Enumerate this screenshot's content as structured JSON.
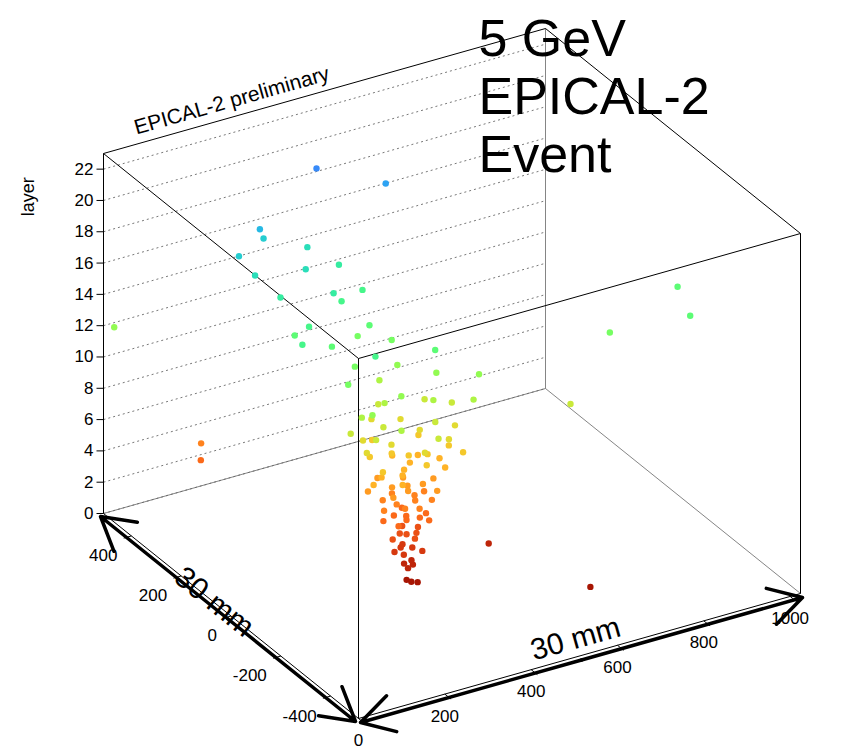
{
  "chart_data": {
    "type": "scatter3d",
    "title": "EPICAL-2 preliminary",
    "annotation": [
      "5 GeV",
      "EPICAL-2",
      "Event"
    ],
    "zlabel": "layer",
    "dimension_labels": [
      "30 mm",
      "30 mm"
    ],
    "grid": true,
    "xlim": [
      0,
      1024
    ],
    "ylim": [
      -512,
      512
    ],
    "zlim": [
      0,
      23
    ],
    "xticks": [
      0,
      200,
      400,
      600,
      800,
      1000
    ],
    "yticks": [
      -400,
      -200,
      0,
      200,
      400
    ],
    "zticks": [
      0,
      2,
      4,
      6,
      8,
      10,
      12,
      14,
      16,
      18,
      20,
      22
    ],
    "x": [
      378,
      382,
      392,
      678,
      375,
      388,
      372,
      563,
      395,
      370,
      390,
      360,
      400,
      380,
      350,
      365,
      395,
      380,
      410,
      340,
      385,
      375,
      360,
      400,
      420,
      345,
      380,
      390,
      330,
      410,
      372,
      147,
      355,
      405,
      425,
      340,
      385,
      370,
      320,
      395,
      360,
      430,
      150,
      350,
      410,
      440,
      330,
      390,
      370,
      300,
      420,
      380,
      345,
      360,
      400,
      450,
      320,
      385,
      340,
      430,
      375,
      290,
      460,
      355,
      415,
      470,
      310,
      390,
      350,
      440,
      300,
      380,
      480,
      340,
      420,
      490,
      300,
      380,
      360,
      450,
      280,
      410,
      330,
      430,
      500,
      290,
      370,
      460,
      260,
      400,
      700,
      350,
      440,
      280,
      510,
      390,
      320,
      360,
      470,
      270,
      420,
      540,
      15,
      310,
      430,
      260,
      380,
      820,
      280,
      390,
      450,
      240,
      960,
      1000,
      250,
      360,
      300,
      420,
      200,
      230,
      330,
      400,
      200,
      300,
      350,
      180,
      260,
      240,
      520,
      400
    ],
    "y": [
      -50,
      -62,
      -70,
      -268,
      -45,
      -58,
      -66,
      -59,
      -40,
      -40,
      -52,
      -70,
      -75,
      -30,
      -50,
      -45,
      -60,
      -80,
      -40,
      -60,
      -20,
      -55,
      -30,
      -65,
      -55,
      -75,
      -45,
      -10,
      -40,
      -85,
      -60,
      376,
      -50,
      -35,
      -70,
      -20,
      -90,
      -5,
      -60,
      -55,
      -75,
      -30,
      380,
      -40,
      -60,
      -50,
      -80,
      -15,
      -70,
      -30,
      -100,
      -50,
      10,
      -65,
      -25,
      -80,
      -50,
      20,
      -100,
      -5,
      -45,
      -70,
      -40,
      -30,
      -70,
      -60,
      -20,
      -110,
      40,
      10,
      -90,
      -55,
      -100,
      -55,
      -30,
      -50,
      -10,
      -120,
      60,
      -95,
      -60,
      30,
      -40,
      -75,
      -20,
      -80,
      50,
      20,
      -30,
      -140,
      -150,
      -10,
      -50,
      -40,
      -90,
      80,
      -130,
      -60,
      -10,
      -100,
      60,
      -60,
      495,
      40,
      100,
      -20,
      150,
      -100,
      80,
      120,
      -40,
      160,
      -180,
      -60,
      120,
      180,
      -60,
      200,
      60,
      200,
      160,
      260,
      250,
      220,
      300,
      280,
      320,
      300,
      280,
      350
    ],
    "z": [
      0,
      0,
      0,
      0,
      1,
      1,
      1,
      1,
      1,
      2,
      2,
      2,
      2,
      2,
      2,
      3,
      3,
      3,
      3,
      3,
      3,
      3,
      4,
      4,
      4,
      4,
      4,
      4,
      4,
      4,
      4,
      4,
      5,
      5,
      5,
      5,
      5,
      5,
      5,
      5,
      5,
      5,
      5,
      6,
      6,
      6,
      6,
      6,
      6,
      6,
      6,
      6,
      6,
      7,
      7,
      7,
      7,
      7,
      7,
      7,
      7,
      7,
      7,
      8,
      8,
      8,
      8,
      8,
      8,
      8,
      8,
      8,
      8,
      9,
      9,
      9,
      9,
      9,
      9,
      9,
      9,
      9,
      10,
      10,
      10,
      10,
      10,
      10,
      10,
      10,
      10,
      11,
      11,
      11,
      11,
      11,
      11,
      12,
      12,
      12,
      12,
      12,
      12,
      13,
      13,
      13,
      13,
      13,
      14,
      14,
      14,
      14,
      14,
      14,
      15,
      15,
      15,
      15,
      15,
      16,
      16,
      16,
      17,
      17,
      17,
      18,
      18,
      19,
      20,
      21
    ]
  }
}
